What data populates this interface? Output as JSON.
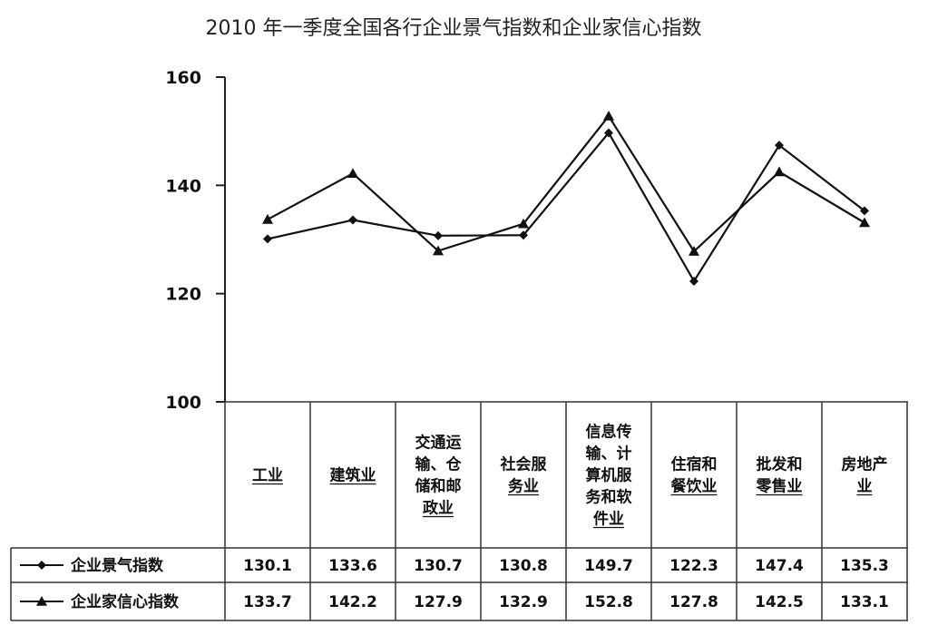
{
  "chart_data": {
    "type": "line",
    "title": "2010 年一季度全国各行企业景气指数和企业家信心指数",
    "categories": [
      [
        "工业"
      ],
      [
        "建筑业"
      ],
      [
        "交通运",
        "输、仓",
        "储和邮",
        "政业"
      ],
      [
        "社会服",
        "务业"
      ],
      [
        "信息传",
        "输、计",
        "算机服",
        "务和软",
        "件业"
      ],
      [
        "住宿和",
        "餐饮业"
      ],
      [
        "批发和",
        "零售业"
      ],
      [
        "房地产",
        "业"
      ]
    ],
    "y_ticks": [
      "160",
      "140",
      "120",
      "100"
    ],
    "ylim": [
      100,
      160
    ],
    "series": [
      {
        "name": "企业景气指数",
        "marker": "diamond",
        "values": [
          130.1,
          133.6,
          130.7,
          130.8,
          149.7,
          122.3,
          147.4,
          135.3
        ],
        "labels": [
          "130.1",
          "133.6",
          "130.7",
          "130.8",
          "149.7",
          "122.3",
          "147.4",
          "135.3"
        ]
      },
      {
        "name": "企业家信心指数",
        "marker": "triangle",
        "values": [
          133.7,
          142.2,
          127.9,
          132.9,
          152.8,
          127.8,
          142.5,
          133.1
        ],
        "labels": [
          "133.7",
          "142.2",
          "127.9",
          "132.9",
          "152.8",
          "127.8",
          "142.5",
          "133.1"
        ]
      }
    ],
    "grid": false,
    "legend": "data-table"
  }
}
